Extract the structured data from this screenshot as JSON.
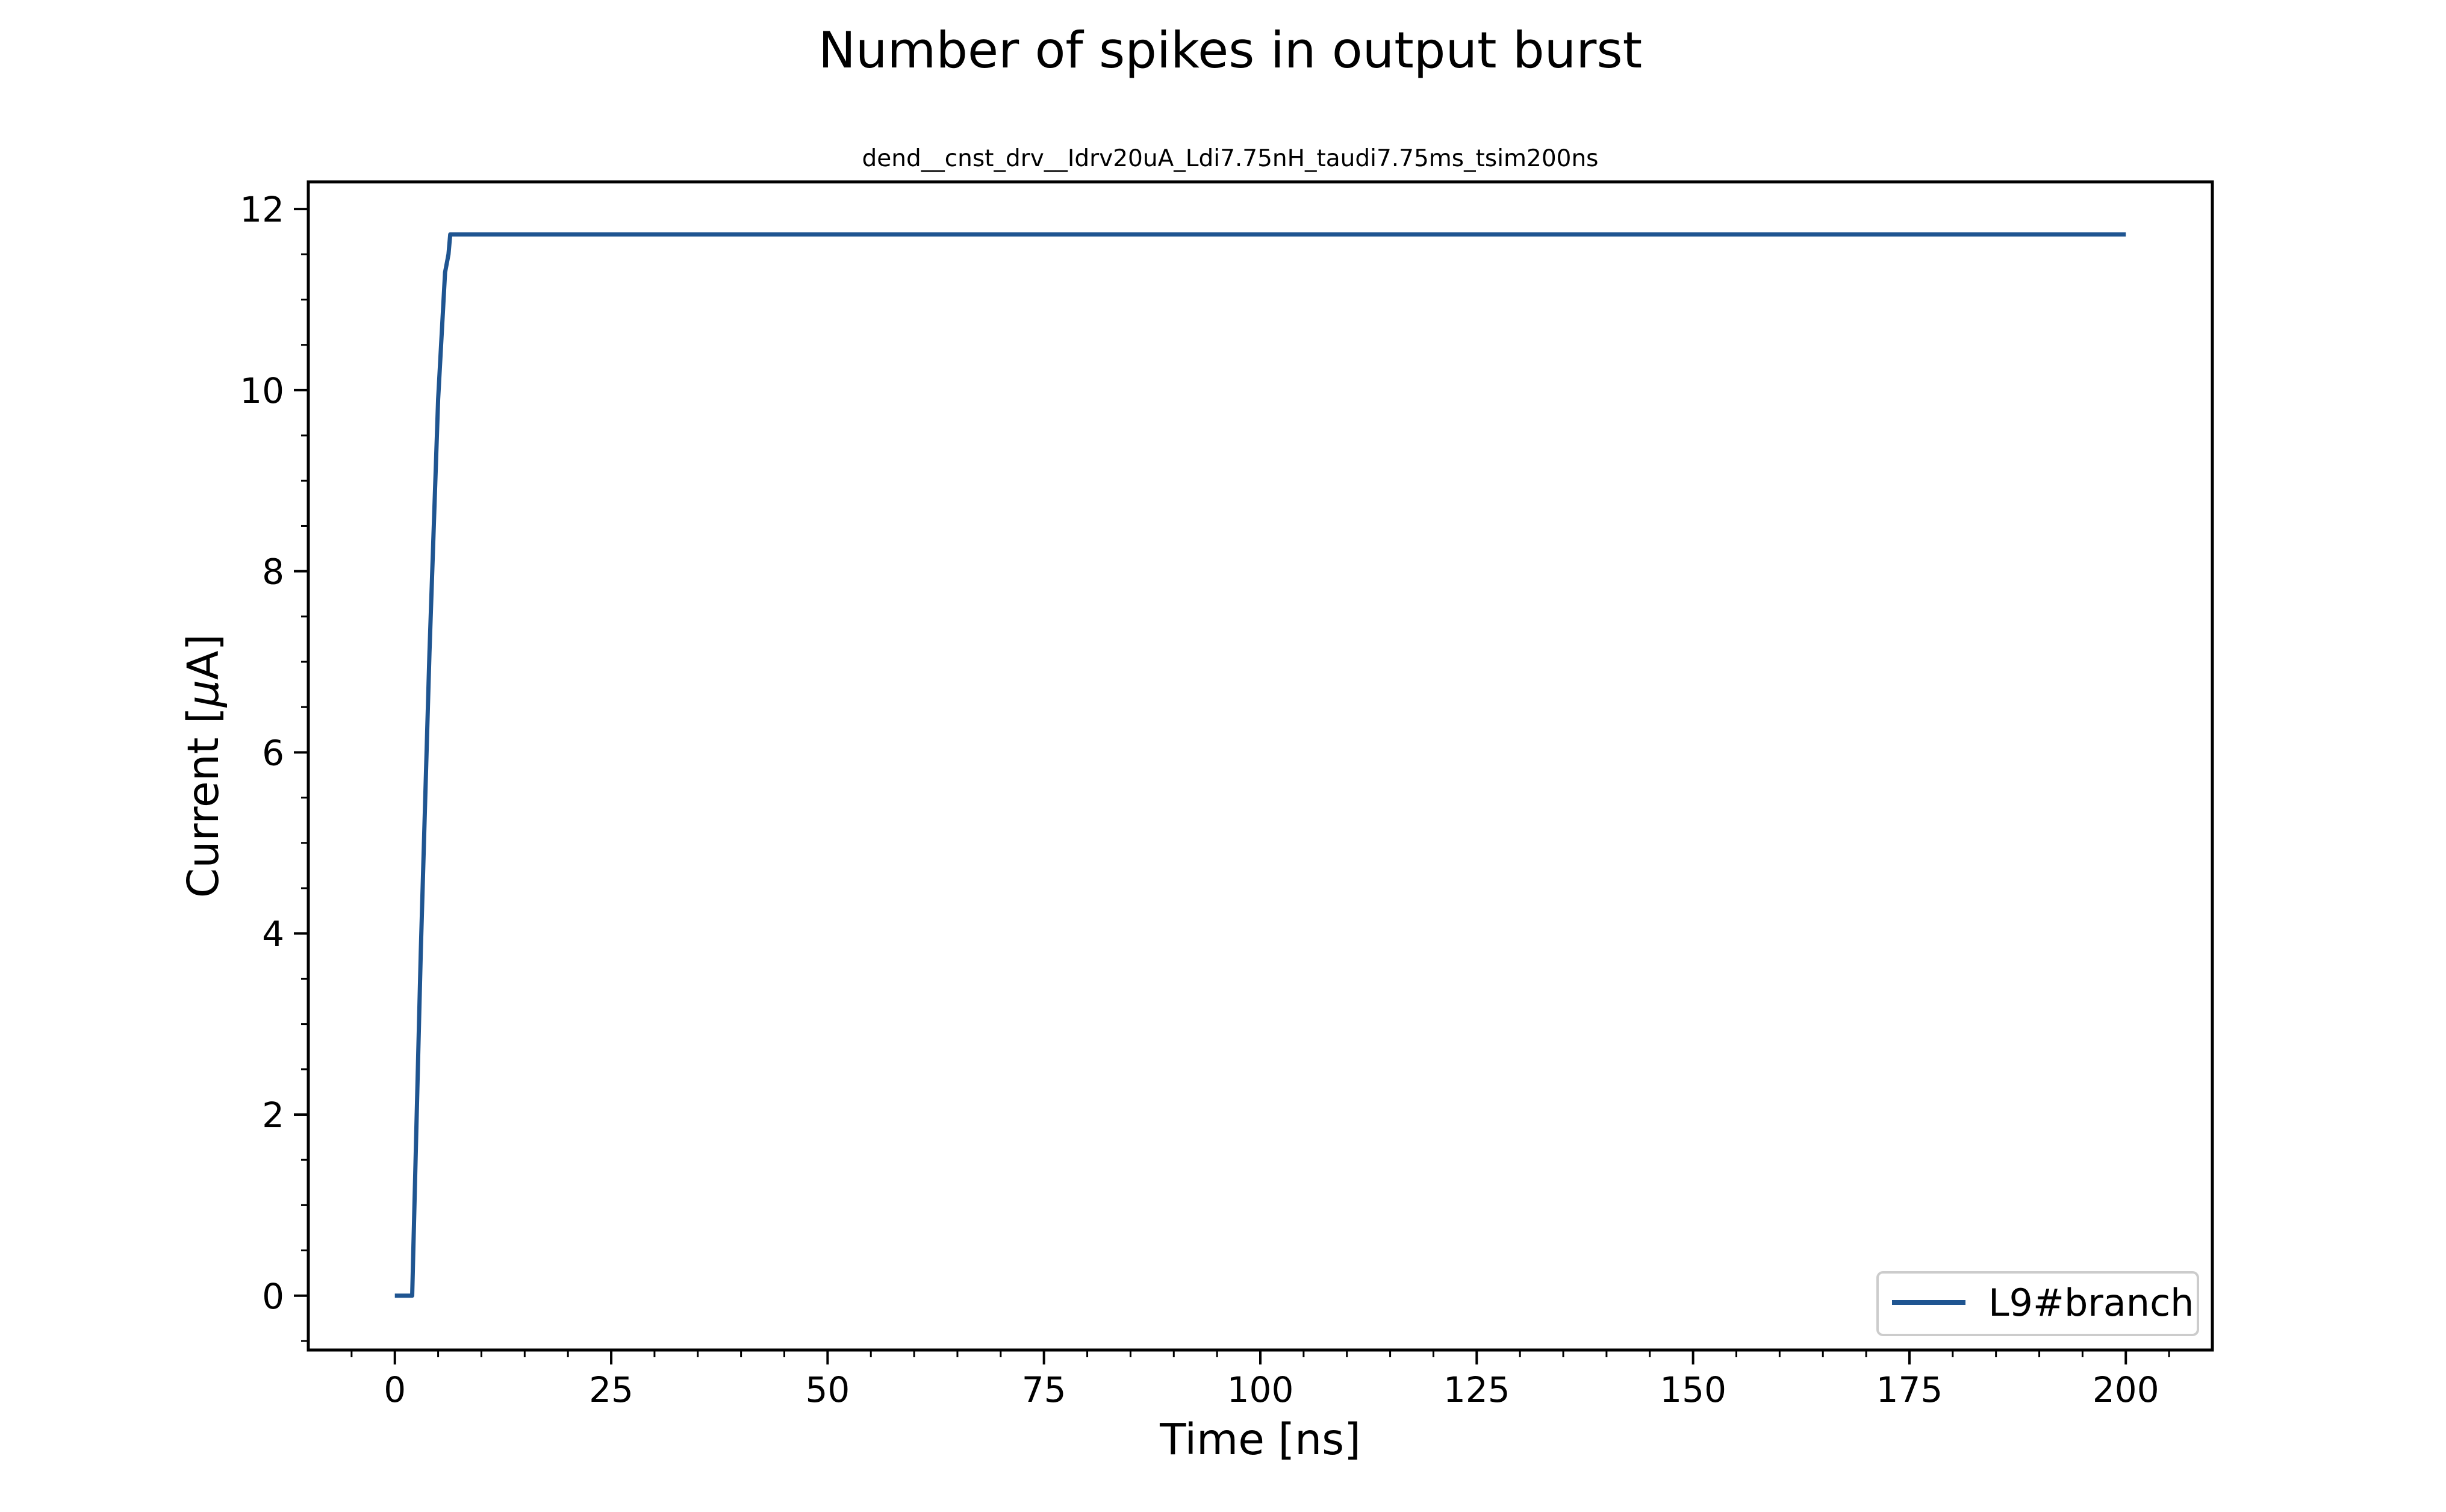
{
  "chart_data": {
    "type": "line",
    "title": "Number of spikes in output burst",
    "subtitle": "dend__cnst_drv__Idrv20uA_Ldi7.75nH_taudi7.75ms_tsim200ns",
    "xlabel": "Time [ns]",
    "ylabel_prefix": "Current [",
    "ylabel_symbol": "μ",
    "ylabel_suffix": "A]",
    "xlim": [
      -10,
      210
    ],
    "ylim": [
      -0.6,
      12.3
    ],
    "x_ticks": [
      0,
      25,
      50,
      75,
      100,
      125,
      150,
      175,
      200
    ],
    "y_ticks": [
      0,
      2,
      4,
      6,
      8,
      10,
      12
    ],
    "grid": false,
    "legend_position": "lower-right",
    "series": [
      {
        "name": "L9#branch",
        "color": "#1f5591",
        "x": [
          0,
          2.0,
          3.0,
          4.0,
          5.0,
          5.8,
          6.2,
          6.4,
          6.5,
          200
        ],
        "y": [
          0,
          0,
          3.8,
          7.1,
          9.9,
          11.3,
          11.5,
          11.72,
          11.72,
          11.72
        ]
      }
    ]
  }
}
